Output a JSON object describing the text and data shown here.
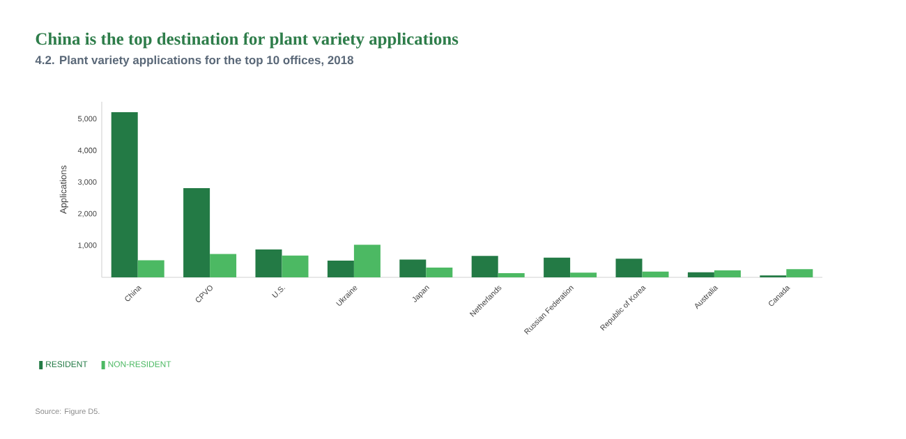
{
  "chart_data": {
    "type": "bar",
    "title": "China is the top destination for plant variety applications",
    "subtitle": "4.2. Plant variety applications for the top 10 offices, 2018",
    "ylabel": "Applications",
    "categories": [
      "China",
      "CPVO",
      "U.S.",
      "Ukraine",
      "Japan",
      "Netherlands",
      "Russian Federation",
      "Republic of Korea",
      "Australia",
      "Canada"
    ],
    "series": [
      {
        "name": "RESIDENT",
        "color": "#237a45",
        "values": [
          5220,
          2820,
          880,
          530,
          560,
          680,
          620,
          590,
          160,
          60
        ]
      },
      {
        "name": "NON-RESIDENT",
        "color": "#4cb963",
        "values": [
          540,
          740,
          690,
          1030,
          310,
          130,
          150,
          180,
          220,
          260
        ]
      }
    ],
    "ylim": [
      0,
      5550
    ],
    "yticks": [
      {
        "value": 1000,
        "label": "1,000"
      },
      {
        "value": 2000,
        "label": "2,000"
      },
      {
        "value": 3000,
        "label": "3,000"
      },
      {
        "value": 4000,
        "label": "4,000"
      },
      {
        "value": 5000,
        "label": "5,000"
      }
    ],
    "legend": "bottom left",
    "grid": false,
    "annotations": [
      "Source: Figure D5."
    ]
  }
}
